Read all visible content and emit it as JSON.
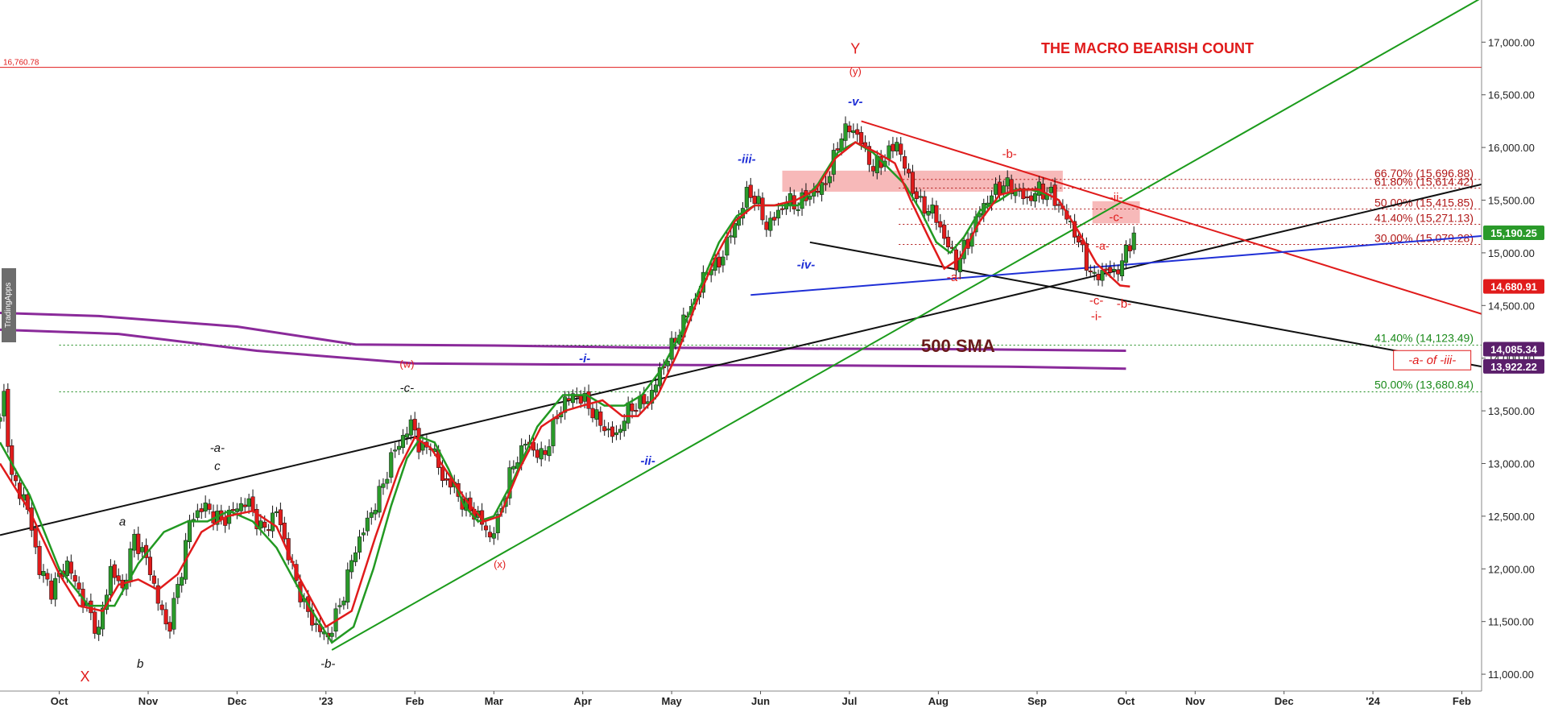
{
  "watermark": "TradingApps",
  "colors": {
    "up": "#2a9a2a",
    "down": "#e01b1b",
    "wick": "#111111",
    "ema_fast": "#e01b1b",
    "ema_slow": "#229922",
    "sma": "#8a2a9a",
    "resistance": "#e01b1b",
    "support_green": "#1b9b1b",
    "trend_black": "#111111",
    "trend_blue": "#1f2fd6",
    "fib_red": "#b01717",
    "fib_green": "#1a8a1a",
    "zone_fill": "#f4a1a1",
    "axis_text": "#222222",
    "grid": "#e6e6e6"
  },
  "chart_data": {
    "type": "candlestick",
    "title": "THE MACRO BEARISH COUNT",
    "ylim": [
      10840,
      17400
    ],
    "y_ticks": [
      11000,
      11500,
      12000,
      12500,
      13000,
      13500,
      14000,
      14500,
      15000,
      15500,
      16000,
      16500,
      17000
    ],
    "y_tick_labels": [
      "11,000.00",
      "11,500.00",
      "12,000.00",
      "12,500.00",
      "13,000.00",
      "13,500.00",
      "14,000.00",
      "14,500.00",
      "15,000.00",
      "15,500.00",
      "16,000.00",
      "16,500.00",
      "17,000.00"
    ],
    "x_months": [
      {
        "label": "Oct",
        "t": 12.0
      },
      {
        "label": "Nov",
        "t": 16.5
      },
      {
        "label": "Dec",
        "t": 21.0
      },
      {
        "label": "'23",
        "t": 25.5
      },
      {
        "label": "Feb",
        "t": 30.0
      },
      {
        "label": "Mar",
        "t": 34.0
      },
      {
        "label": "Apr",
        "t": 38.5
      },
      {
        "label": "May",
        "t": 43.0
      },
      {
        "label": "Jun",
        "t": 47.5
      },
      {
        "label": "Jul",
        "t": 52.0
      },
      {
        "label": "Aug",
        "t": 56.5
      },
      {
        "label": "Sep",
        "t": 61.5
      },
      {
        "label": "Oct",
        "t": 66.0
      },
      {
        "label": "Nov",
        "t": 69.5
      },
      {
        "label": "Dec",
        "t": 74.0
      },
      {
        "label": "'24",
        "t": 78.5
      },
      {
        "label": "Feb",
        "t": 83.0
      }
    ],
    "x_range": [
      9.0,
      84.0
    ],
    "price_anchors": [
      [
        9.0,
        13400
      ],
      [
        9.2,
        13650
      ],
      [
        9.6,
        12850
      ],
      [
        10.3,
        12650
      ],
      [
        11.0,
        12000
      ],
      [
        11.6,
        11800
      ],
      [
        12.4,
        12050
      ],
      [
        13.2,
        11700
      ],
      [
        14.0,
        11400
      ],
      [
        14.6,
        12000
      ],
      [
        15.2,
        11800
      ],
      [
        15.8,
        12300
      ],
      [
        16.5,
        12050
      ],
      [
        17.0,
        11700
      ],
      [
        17.5,
        11400
      ],
      [
        18.2,
        12000
      ],
      [
        18.6,
        12450
      ],
      [
        19.3,
        12600
      ],
      [
        20.2,
        12450
      ],
      [
        20.8,
        12550
      ],
      [
        21.5,
        12650
      ],
      [
        22.3,
        12350
      ],
      [
        23.0,
        12550
      ],
      [
        23.8,
        12000
      ],
      [
        24.4,
        11650
      ],
      [
        25.0,
        11450
      ],
      [
        25.6,
        11350
      ],
      [
        26.3,
        11700
      ],
      [
        26.9,
        12150
      ],
      [
        27.6,
        12450
      ],
      [
        28.3,
        12750
      ],
      [
        28.9,
        13100
      ],
      [
        29.4,
        13250
      ],
      [
        29.9,
        13400
      ],
      [
        30.3,
        13100
      ],
      [
        30.8,
        13200
      ],
      [
        31.4,
        12850
      ],
      [
        31.9,
        12800
      ],
      [
        32.5,
        12600
      ],
      [
        33.2,
        12500
      ],
      [
        33.8,
        12300
      ],
      [
        34.2,
        12450
      ],
      [
        34.9,
        12950
      ],
      [
        35.6,
        13200
      ],
      [
        36.5,
        13050
      ],
      [
        37.1,
        13400
      ],
      [
        37.6,
        13600
      ],
      [
        38.2,
        13650
      ],
      [
        38.8,
        13550
      ],
      [
        39.5,
        13350
      ],
      [
        40.2,
        13250
      ],
      [
        40.6,
        13450
      ],
      [
        41.1,
        13550
      ],
      [
        41.8,
        13600
      ],
      [
        42.5,
        13900
      ],
      [
        43.0,
        14100
      ],
      [
        43.6,
        14350
      ],
      [
        44.3,
        14600
      ],
      [
        44.9,
        14900
      ],
      [
        45.3,
        14850
      ],
      [
        45.8,
        15100
      ],
      [
        46.4,
        15350
      ],
      [
        46.9,
        15600
      ],
      [
        47.4,
        15450
      ],
      [
        47.8,
        15250
      ],
      [
        48.3,
        15350
      ],
      [
        48.8,
        15500
      ],
      [
        49.4,
        15450
      ],
      [
        49.9,
        15550
      ],
      [
        50.5,
        15600
      ],
      [
        51.0,
        15750
      ],
      [
        51.5,
        16100
      ],
      [
        52.1,
        16200
      ],
      [
        52.6,
        16050
      ],
      [
        53.2,
        15800
      ],
      [
        53.8,
        15900
      ],
      [
        54.4,
        16050
      ],
      [
        55.0,
        15700
      ],
      [
        55.6,
        15450
      ],
      [
        56.2,
        15400
      ],
      [
        56.8,
        15150
      ],
      [
        57.4,
        14900
      ],
      [
        58.0,
        15100
      ],
      [
        58.6,
        15400
      ],
      [
        59.2,
        15550
      ],
      [
        59.8,
        15650
      ],
      [
        60.4,
        15600
      ],
      [
        61.0,
        15500
      ],
      [
        61.6,
        15600
      ],
      [
        62.2,
        15550
      ],
      [
        62.8,
        15400
      ],
      [
        63.4,
        15200
      ],
      [
        63.9,
        14950
      ],
      [
        64.4,
        14750
      ],
      [
        64.9,
        14850
      ],
      [
        65.4,
        14800
      ],
      [
        65.9,
        14950
      ],
      [
        66.4,
        15190
      ]
    ],
    "ema_fast_anchors": [
      [
        9.0,
        13000
      ],
      [
        10.5,
        12550
      ],
      [
        12.0,
        11950
      ],
      [
        13.0,
        11650
      ],
      [
        14.2,
        11600
      ],
      [
        15.0,
        11850
      ],
      [
        16.0,
        11900
      ],
      [
        17.0,
        11800
      ],
      [
        18.0,
        11950
      ],
      [
        19.2,
        12350
      ],
      [
        20.5,
        12500
      ],
      [
        21.8,
        12550
      ],
      [
        23.0,
        12400
      ],
      [
        24.2,
        11900
      ],
      [
        25.5,
        11450
      ],
      [
        26.8,
        11600
      ],
      [
        28.0,
        12300
      ],
      [
        29.2,
        12950
      ],
      [
        30.0,
        13250
      ],
      [
        30.8,
        13150
      ],
      [
        31.7,
        12900
      ],
      [
        32.6,
        12650
      ],
      [
        33.5,
        12450
      ],
      [
        34.3,
        12500
      ],
      [
        35.3,
        12950
      ],
      [
        36.4,
        13350
      ],
      [
        37.6,
        13500
      ],
      [
        38.5,
        13550
      ],
      [
        39.5,
        13600
      ],
      [
        40.5,
        13450
      ],
      [
        41.3,
        13450
      ],
      [
        42.3,
        13650
      ],
      [
        43.3,
        14050
      ],
      [
        44.3,
        14550
      ],
      [
        45.2,
        14950
      ],
      [
        46.2,
        15300
      ],
      [
        47.2,
        15450
      ],
      [
        48.2,
        15450
      ],
      [
        49.3,
        15500
      ],
      [
        50.3,
        15600
      ],
      [
        51.3,
        15900
      ],
      [
        52.3,
        16050
      ],
      [
        53.4,
        15950
      ],
      [
        54.3,
        15850
      ],
      [
        55.1,
        15500
      ],
      [
        56.0,
        15150
      ],
      [
        56.8,
        14850
      ],
      [
        57.6,
        14950
      ],
      [
        58.6,
        15300
      ],
      [
        59.6,
        15550
      ],
      [
        60.6,
        15600
      ],
      [
        61.6,
        15600
      ],
      [
        62.6,
        15500
      ],
      [
        63.6,
        15200
      ],
      [
        64.5,
        14900
      ],
      [
        65.3,
        14760
      ],
      [
        65.7,
        14690
      ],
      [
        66.2,
        14680
      ]
    ],
    "ema_slow_anchors": [
      [
        9.0,
        13200
      ],
      [
        10.5,
        12700
      ],
      [
        12.0,
        12000
      ],
      [
        13.5,
        11650
      ],
      [
        14.8,
        11650
      ],
      [
        16.0,
        12050
      ],
      [
        17.3,
        12350
      ],
      [
        18.5,
        12450
      ],
      [
        19.5,
        12450
      ],
      [
        20.6,
        12550
      ],
      [
        21.8,
        12450
      ],
      [
        23.0,
        12200
      ],
      [
        24.3,
        11750
      ],
      [
        25.8,
        11300
      ],
      [
        26.9,
        11450
      ],
      [
        27.9,
        12000
      ],
      [
        28.8,
        12600
      ],
      [
        29.6,
        13050
      ],
      [
        30.3,
        13250
      ],
      [
        31.0,
        13200
      ],
      [
        31.7,
        12950
      ],
      [
        32.5,
        12600
      ],
      [
        33.2,
        12450
      ],
      [
        34.0,
        12500
      ],
      [
        35.0,
        12850
      ],
      [
        36.2,
        13350
      ],
      [
        37.5,
        13650
      ],
      [
        38.7,
        13650
      ],
      [
        39.6,
        13550
      ],
      [
        40.6,
        13550
      ],
      [
        41.5,
        13650
      ],
      [
        42.5,
        13900
      ],
      [
        43.5,
        14250
      ],
      [
        44.5,
        14700
      ],
      [
        45.4,
        15100
      ],
      [
        46.3,
        15350
      ],
      [
        47.2,
        15450
      ],
      [
        48.2,
        15450
      ],
      [
        49.4,
        15450
      ],
      [
        50.4,
        15650
      ],
      [
        51.4,
        15950
      ],
      [
        52.3,
        16050
      ],
      [
        53.2,
        15950
      ],
      [
        54.0,
        15800
      ],
      [
        54.8,
        15650
      ],
      [
        55.6,
        15400
      ],
      [
        56.4,
        15100
      ],
      [
        57.1,
        15000
      ],
      [
        57.8,
        15150
      ],
      [
        58.6,
        15400
      ],
      [
        59.6,
        15500
      ],
      [
        60.4,
        15600
      ],
      [
        61.2,
        15600
      ],
      [
        62.0,
        15550
      ]
    ],
    "sma_lines": [
      {
        "name": "500 SMA",
        "points": [
          [
            9.0,
            14430
          ],
          [
            14.0,
            14400
          ],
          [
            21.0,
            14300
          ],
          [
            27.0,
            14130
          ],
          [
            34.0,
            14120
          ],
          [
            42.0,
            14100
          ],
          [
            50.0,
            14090
          ],
          [
            58.0,
            14085
          ],
          [
            66.0,
            14070
          ]
        ]
      },
      {
        "name": "",
        "points": [
          [
            9.0,
            14270
          ],
          [
            15.0,
            14230
          ],
          [
            22.0,
            14070
          ],
          [
            30.0,
            13950
          ],
          [
            37.0,
            13940
          ],
          [
            44.0,
            13935
          ],
          [
            52.0,
            13930
          ],
          [
            60.0,
            13920
          ],
          [
            66.0,
            13900
          ]
        ]
      }
    ],
    "trend_lines": [
      {
        "color": "trend_black",
        "p1": [
          9.0,
          12320
        ],
        "p2": [
          84.0,
          15650
        ]
      },
      {
        "color": "support_green",
        "p1": [
          25.8,
          11230
        ],
        "p2": [
          84.0,
          17420
        ]
      },
      {
        "color": "resistance",
        "p1": [
          52.6,
          16250
        ],
        "p2": [
          84.0,
          14420
        ]
      },
      {
        "color": "trend_black",
        "p1": [
          50.0,
          15100
        ],
        "p2": [
          84.0,
          13920
        ]
      },
      {
        "color": "trend_blue",
        "p1": [
          47.0,
          14600
        ],
        "p2": [
          84.0,
          15160
        ]
      }
    ],
    "horizontal_line": {
      "value": 16760.78,
      "label": "16,760.78"
    },
    "fib_levels_red": [
      {
        "label": "66.70% (15,696.88)",
        "value": 15696.88
      },
      {
        "label": "61.80% (15,614.42)",
        "value": 15614.42
      },
      {
        "label": "50.00% (15,415.85)",
        "value": 15415.85
      },
      {
        "label": "41.40% (15,271.13)",
        "value": 15271.13
      },
      {
        "label": "30.00% (15,079.28)",
        "value": 15079.28
      }
    ],
    "fib_levels_green": [
      {
        "label": "41.40% (14,123.49)",
        "value": 14123.49
      },
      {
        "label": "50.00% (13,680.84)",
        "value": 13680.84
      }
    ],
    "zones": [
      {
        "t1": 48.6,
        "t2": 62.8,
        "y1": 15580,
        "y2": 15780
      },
      {
        "t1": 64.3,
        "t2": 66.7,
        "y1": 15280,
        "y2": 15490
      }
    ],
    "price_tags": [
      {
        "value": 15190.25,
        "label": "15,190.25",
        "color": "#2a9a2a"
      },
      {
        "value": 14680.91,
        "label": "14,680.91",
        "color": "#e01b1b"
      },
      {
        "value": 14085.34,
        "label": "14,085.34",
        "color": "#5b1f6b"
      },
      {
        "value": 13922.22,
        "label": "13,922.22",
        "color": "#5b1f6b"
      }
    ],
    "wave_labels": [
      {
        "text": "Y",
        "t": 52.3,
        "v": 16890,
        "color": "#e01b1b",
        "size": 18,
        "bold": false
      },
      {
        "text": "(y)",
        "t": 52.3,
        "v": 16690,
        "color": "#e01b1b",
        "size": 13,
        "bold": false
      },
      {
        "text": "-v-",
        "t": 52.3,
        "v": 16400,
        "color": "#1f2fd6",
        "size": 15,
        "bold": true
      },
      {
        "text": "-iii-",
        "t": 46.8,
        "v": 15850,
        "color": "#1f2fd6",
        "size": 15,
        "bold": true
      },
      {
        "text": "-iv-",
        "t": 49.8,
        "v": 14850,
        "color": "#1f2fd6",
        "size": 15,
        "bold": true
      },
      {
        "text": "-i-",
        "t": 38.6,
        "v": 13960,
        "color": "#1f2fd6",
        "size": 15,
        "bold": true
      },
      {
        "text": "-ii-",
        "t": 41.8,
        "v": 12990,
        "color": "#1f2fd6",
        "size": 15,
        "bold": true
      },
      {
        "text": "(w)",
        "t": 29.6,
        "v": 13910,
        "color": "#e01b1b",
        "size": 13,
        "bold": false
      },
      {
        "text": "-c-",
        "t": 29.6,
        "v": 13680,
        "color": "#111111",
        "size": 15,
        "bold": false
      },
      {
        "text": "(x)",
        "t": 34.3,
        "v": 12010,
        "color": "#e01b1b",
        "size": 13,
        "bold": false
      },
      {
        "text": "-a-",
        "t": 20.0,
        "v": 13110,
        "color": "#111111",
        "size": 15,
        "bold": false
      },
      {
        "text": "c",
        "t": 20.0,
        "v": 12940,
        "color": "#111111",
        "size": 15,
        "bold": false
      },
      {
        "text": "a",
        "t": 15.2,
        "v": 12410,
        "color": "#111111",
        "size": 15,
        "bold": false
      },
      {
        "text": "b",
        "t": 16.1,
        "v": 11060,
        "color": "#111111",
        "size": 15,
        "bold": false
      },
      {
        "text": "-b-",
        "t": 25.6,
        "v": 11060,
        "color": "#111111",
        "size": 15,
        "bold": false
      },
      {
        "text": "X",
        "t": 13.3,
        "v": 10930,
        "color": "#e01b1b",
        "size": 18,
        "bold": false
      },
      {
        "text": "-b-",
        "t": 60.1,
        "v": 15900,
        "color": "#e01b1b",
        "size": 15,
        "bold": false
      },
      {
        "text": "-a-",
        "t": 57.3,
        "v": 14730,
        "color": "#e01b1b",
        "size": 15,
        "bold": false
      },
      {
        "text": "-a-",
        "t": 64.8,
        "v": 15030,
        "color": "#e01b1b",
        "size": 14,
        "bold": false
      },
      {
        "text": "-c-",
        "t": 64.5,
        "v": 14510,
        "color": "#e01b1b",
        "size": 15,
        "bold": false
      },
      {
        "text": "-i-",
        "t": 64.5,
        "v": 14360,
        "color": "#e01b1b",
        "size": 15,
        "bold": false
      },
      {
        "text": "-b-",
        "t": 65.9,
        "v": 14480,
        "color": "#e01b1b",
        "size": 15,
        "bold": false
      },
      {
        "text": "-ii-",
        "t": 65.5,
        "v": 15490,
        "color": "#e01b1b",
        "size": 15,
        "bold": false
      },
      {
        "text": "-c-",
        "t": 65.5,
        "v": 15300,
        "color": "#e01b1b",
        "size": 15,
        "bold": false
      }
    ],
    "sma_label": {
      "text": "500 SMA",
      "t": 57.5,
      "v": 14060
    },
    "boxed_label": {
      "text": "-a- of -iii-",
      "t": 81.5,
      "v": 13950
    }
  }
}
